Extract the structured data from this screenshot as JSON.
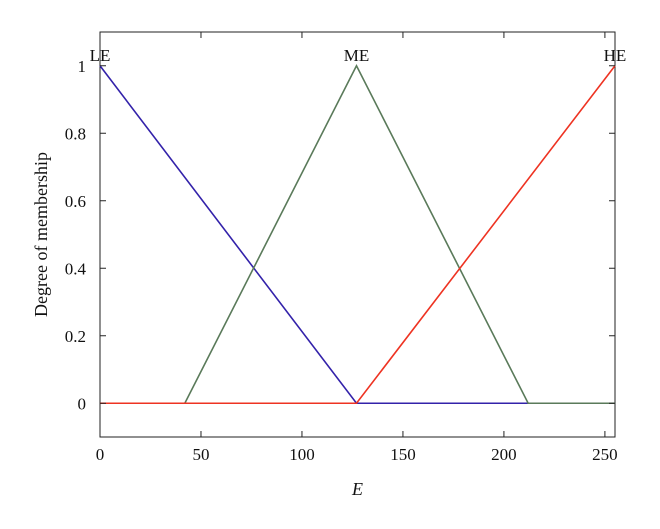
{
  "chart_data": {
    "type": "line",
    "title": "",
    "xlabel": "E",
    "ylabel": "Degree of membership",
    "xlim": [
      0,
      255
    ],
    "ylim": [
      -0.1,
      1.1
    ],
    "xticks": [
      "0",
      "50",
      "100",
      "150",
      "200",
      "250"
    ],
    "xtick_values": [
      0,
      50,
      100,
      150,
      200,
      250
    ],
    "yticks": [
      "0",
      "0.2",
      "0.4",
      "0.6",
      "0.8",
      "1"
    ],
    "ytick_values": [
      0,
      0.2,
      0.4,
      0.6,
      0.8,
      1
    ],
    "grid": false,
    "series": [
      {
        "name": "LE",
        "color": "#3322aa",
        "points": [
          [
            0,
            1
          ],
          [
            127,
            0
          ],
          [
            212,
            0
          ]
        ],
        "label_at": [
          0,
          1
        ]
      },
      {
        "name": "ME",
        "color": "#5a7a5a",
        "points": [
          [
            42,
            0
          ],
          [
            127,
            1
          ],
          [
            212,
            0
          ],
          [
            255,
            0
          ]
        ],
        "label_at": [
          127,
          1
        ]
      },
      {
        "name": "HE",
        "color": "#ee3322",
        "points": [
          [
            0,
            0
          ],
          [
            127,
            0
          ],
          [
            255,
            1
          ]
        ],
        "label_at": [
          255,
          1
        ]
      }
    ]
  }
}
